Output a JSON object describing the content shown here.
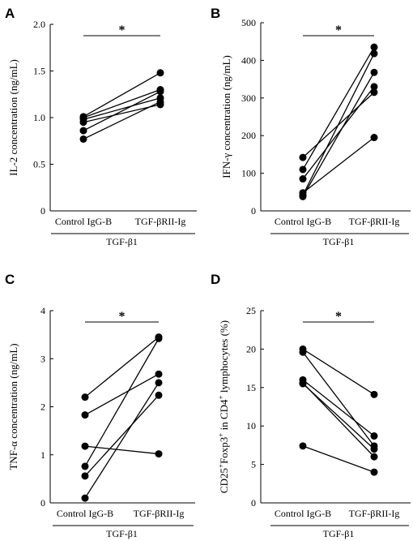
{
  "chart_data": [
    {
      "type": "line",
      "panel": "A",
      "ylabel": "IL-2 concentration (ng/mL)",
      "ylim": [
        0,
        2.0
      ],
      "yticks": [
        "0",
        "0.5",
        "1.0",
        "1.5",
        "2.0"
      ],
      "categories": [
        "Control IgG-B",
        "TGF-βRII-Ig"
      ],
      "group_label": "TGF-β1",
      "significance": "*",
      "pairs": [
        [
          0.77,
          1.17
        ],
        [
          0.86,
          1.28
        ],
        [
          0.95,
          1.14
        ],
        [
          0.98,
          1.21
        ],
        [
          1.0,
          1.3
        ],
        [
          1.01,
          1.48
        ]
      ]
    },
    {
      "type": "line",
      "panel": "B",
      "ylabel": "IFN-γ concentration (ng/mL)",
      "ylim": [
        0,
        500
      ],
      "yticks": [
        "0",
        "100",
        "200",
        "300",
        "400",
        "500"
      ],
      "categories": [
        "Control IgG-B",
        "TGF-βRII-Ig"
      ],
      "group_label": "TGF-β1",
      "significance": "*",
      "pairs": [
        [
          142,
          315
        ],
        [
          110,
          435
        ],
        [
          85,
          330
        ],
        [
          48,
          195
        ],
        [
          42,
          418
        ],
        [
          38,
          368
        ]
      ]
    },
    {
      "type": "line",
      "panel": "C",
      "ylabel": "TNF-α concentration (ng/mL)",
      "ylim": [
        0,
        4
      ],
      "yticks": [
        "0",
        "1",
        "2",
        "3",
        "4"
      ],
      "categories": [
        "Control IgG-B",
        "TGF-βRII-Ig"
      ],
      "group_label": "TGF-β1",
      "significance": "*",
      "pairs": [
        [
          2.2,
          3.45
        ],
        [
          1.83,
          2.68
        ],
        [
          1.18,
          1.02
        ],
        [
          0.76,
          3.42
        ],
        [
          0.56,
          2.24
        ],
        [
          0.1,
          2.5
        ]
      ]
    },
    {
      "type": "line",
      "panel": "D",
      "ylabel_parts": [
        "CD25",
        "+",
        "Foxp3",
        "+",
        " in CD4",
        "+",
        " lymphocytes (%)"
      ],
      "ylim": [
        0,
        25
      ],
      "yticks": [
        "0",
        "5",
        "10",
        "15",
        "20",
        "25"
      ],
      "categories": [
        "Control IgG-B",
        "TGF-βRII-Ig"
      ],
      "group_label": "TGF-β1",
      "significance": "*",
      "pairs": [
        [
          20.0,
          14.1
        ],
        [
          19.6,
          7.4
        ],
        [
          16.0,
          8.7
        ],
        [
          15.6,
          6.0
        ],
        [
          15.5,
          7.0
        ],
        [
          7.4,
          4.0
        ]
      ]
    }
  ]
}
